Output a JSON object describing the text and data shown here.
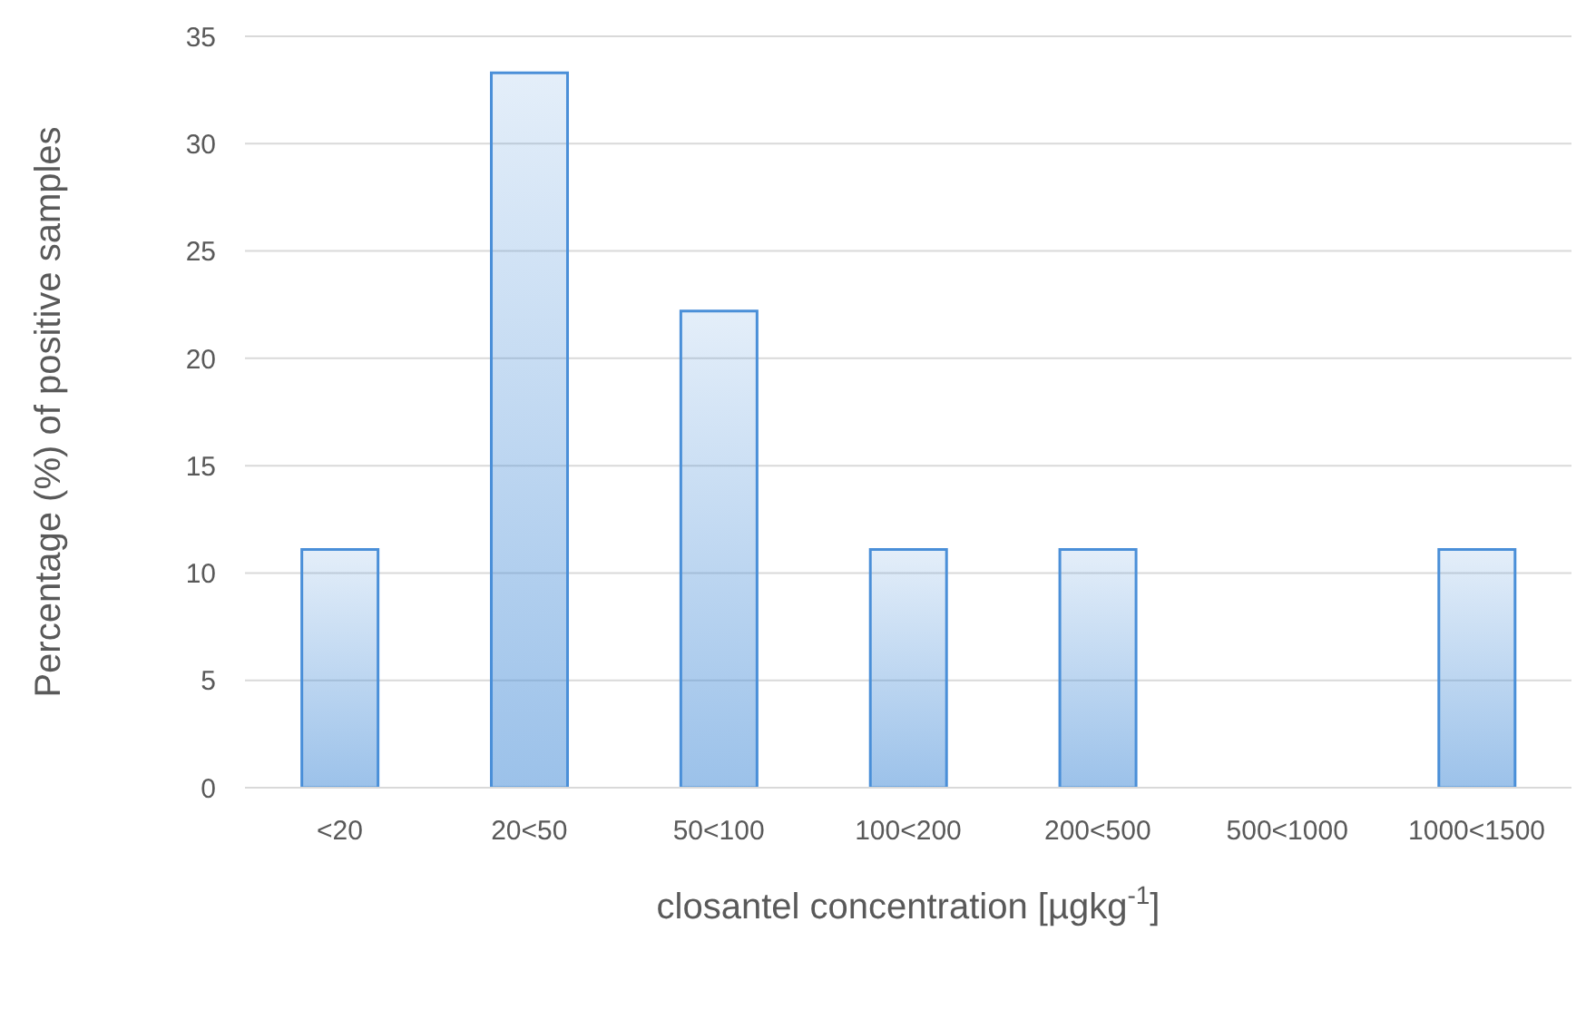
{
  "chart_data": {
    "type": "bar",
    "xlabel": "closantel concentration [µgkg$^{-1}$]",
    "ylabel": "Percentage (%) of positive samples",
    "categories": [
      "<20",
      "20<50",
      "50<100",
      "100<200",
      "200<500",
      "500<1000",
      "1000<1500"
    ],
    "values": [
      11.1,
      33.3,
      22.2,
      11.1,
      11.1,
      0,
      11.1
    ],
    "color": "#4a8fd8",
    "ylim": [
      0,
      35
    ],
    "yticks": [
      0,
      5,
      10,
      15,
      20,
      25,
      30,
      35
    ],
    "grid": "y"
  }
}
